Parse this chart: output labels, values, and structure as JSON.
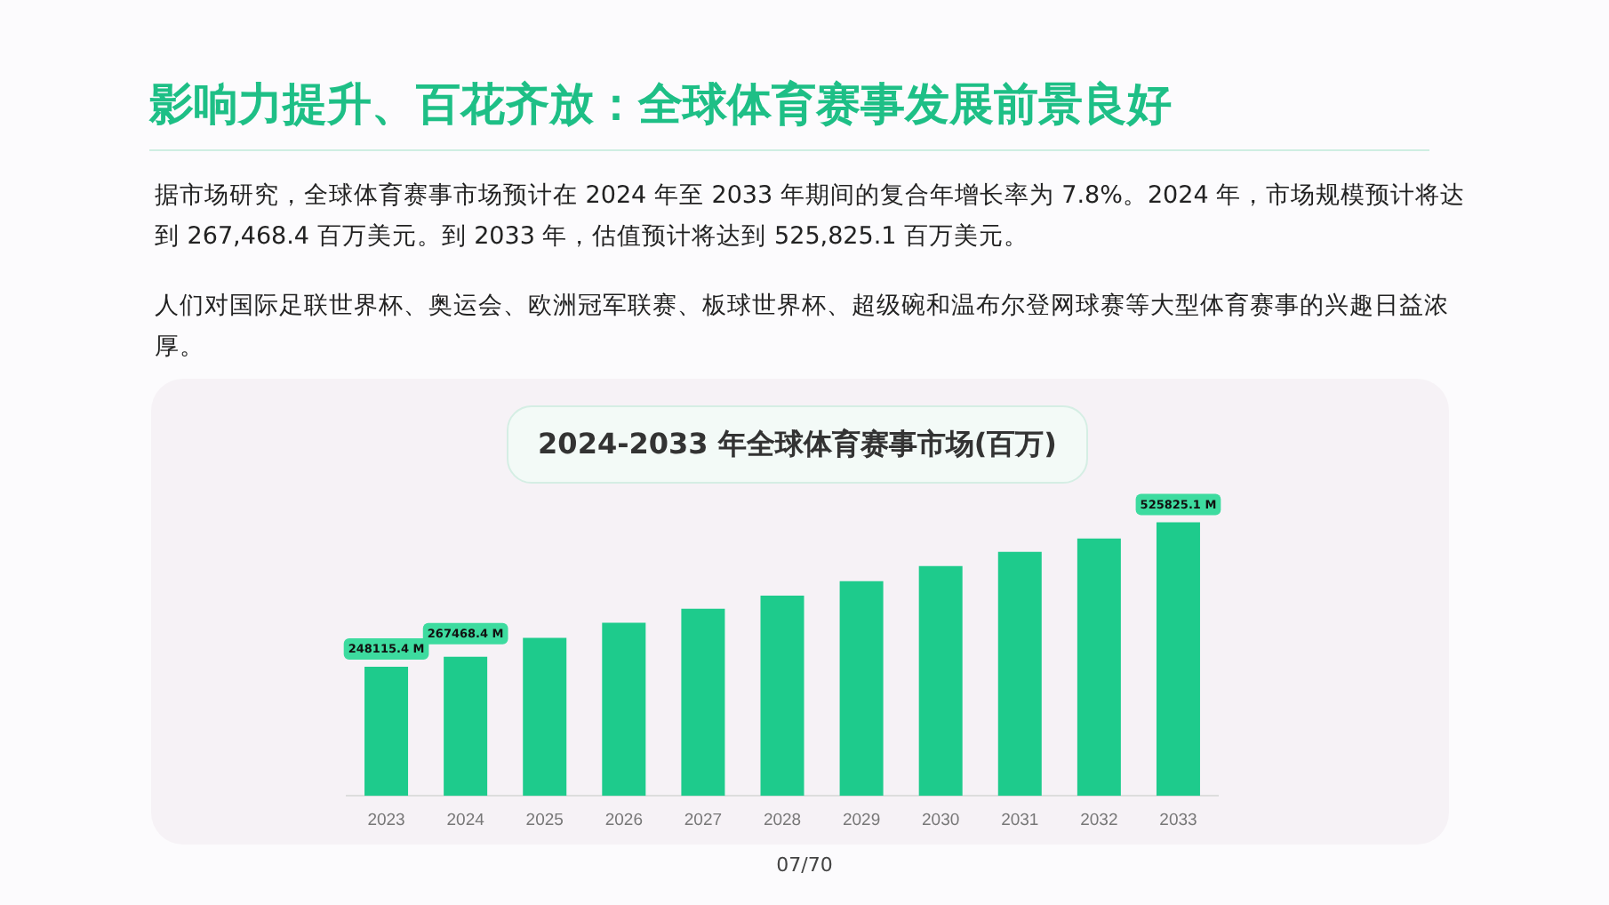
{
  "chart_data": {
    "type": "bar",
    "title": "影响力提升、百花齐放：全球体育赛事发展前景良好",
    "subtitle": "2024-2033 年全球体育赛事市场(百万)",
    "annotations": [
      "据市场研究，全球体育赛事市场预计在 2024 年至 2033 年期间的复合年增长率为 7.8%。2024 年，市场规模预计将达到 267,468.4 百万美元。到 2033 年，估值预计将达到 525,825.1 百万美元。",
      "人们对国际足联世界杯、奥运会、欧洲冠军联赛、板球世界杯、超级碗和温布尔登网球赛等大型体育赛事的兴趣日益浓厚。",
      "07/70"
    ],
    "categories": [
      "2023",
      "2024",
      "2025",
      "2026",
      "2027",
      "2028",
      "2029",
      "2030",
      "2031",
      "2032",
      "2033"
    ],
    "values": [
      248115.4,
      267468.4,
      303600,
      332700,
      359600,
      384600,
      412500,
      441600,
      468800,
      494700,
      525825.1
    ],
    "value_labels": [
      "248115.4 M",
      "267468.4 M",
      null,
      null,
      null,
      null,
      null,
      null,
      null,
      null,
      "525825.1 M"
    ],
    "color": "#1ecb8c",
    "grid": false,
    "legend": false,
    "tick_labels": "x"
  }
}
